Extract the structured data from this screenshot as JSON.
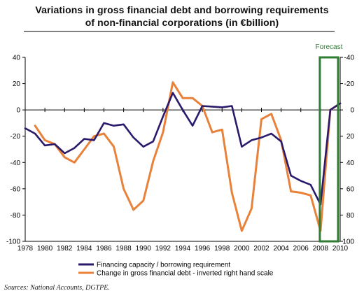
{
  "chart_data": {
    "type": "line",
    "title_line1": "Variations in gross financial debt and borrowing requirements",
    "title_line2": "of non-financial corporations (in €billion)",
    "source": "Sources: National Accounts, DGTPE.",
    "annotation": "Forecast",
    "forecast_range": [
      2008,
      2010
    ],
    "xlim": [
      1978,
      2010
    ],
    "xticks": [
      "1978",
      "1980",
      "1982",
      "1984",
      "1986",
      "1988",
      "1990",
      "1992",
      "1994",
      "1996",
      "1998",
      "2000",
      "2002",
      "2004",
      "2006",
      "2008",
      "2010"
    ],
    "ylim_left": [
      -100,
      40
    ],
    "yticks_left": [
      "40",
      "20",
      "0",
      "-20",
      "-40",
      "-60",
      "-80",
      "-100"
    ],
    "ylim_right": [
      100,
      -40
    ],
    "yticks_right": [
      "-40",
      "-20",
      "0",
      "20",
      "40",
      "60",
      "80",
      "100"
    ],
    "series": [
      {
        "name": "Financing capacity / borrowing requirement",
        "axis": "left",
        "color": "#2b1a6b",
        "x": [
          1978,
          1979,
          1980,
          1981,
          1982,
          1983,
          1984,
          1985,
          1986,
          1987,
          1988,
          1989,
          1990,
          1991,
          1992,
          1993,
          1994,
          1995,
          1996,
          1997,
          1998,
          1999,
          2000,
          2001,
          2002,
          2003,
          2004,
          2005,
          2006,
          2007,
          2008,
          2009,
          2010
        ],
        "y": [
          -14,
          -18,
          -27,
          -26,
          -33,
          -29,
          -22,
          -23,
          -10,
          -12,
          -11,
          -21,
          -28,
          -24,
          -5,
          13,
          0,
          -12,
          3,
          2.5,
          2,
          3,
          -28,
          -23,
          -21,
          -18,
          -24,
          -50,
          -54,
          -57,
          -72,
          0,
          5
        ]
      },
      {
        "name": "Change in gross financial debt - inverted right hand scale",
        "axis": "right",
        "color": "#e8823a",
        "x": [
          1979,
          1980,
          1981,
          1982,
          1983,
          1984,
          1985,
          1986,
          1987,
          1988,
          1989,
          1990,
          1991,
          1992,
          1993,
          1994,
          1995,
          1996,
          1997,
          1998,
          1999,
          2000,
          2001,
          2002,
          2003,
          2004,
          2005,
          2006,
          2007,
          2008,
          2009,
          2010
        ],
        "y": [
          12,
          23,
          26,
          36,
          40,
          30,
          20,
          18,
          28,
          60,
          76,
          69,
          39,
          17,
          -21,
          -9,
          -9,
          -3,
          17,
          15,
          63,
          92,
          75,
          7,
          3,
          23,
          62,
          63,
          65,
          92,
          0,
          -5
        ]
      }
    ],
    "legend_position": "bottom",
    "grid": false
  }
}
